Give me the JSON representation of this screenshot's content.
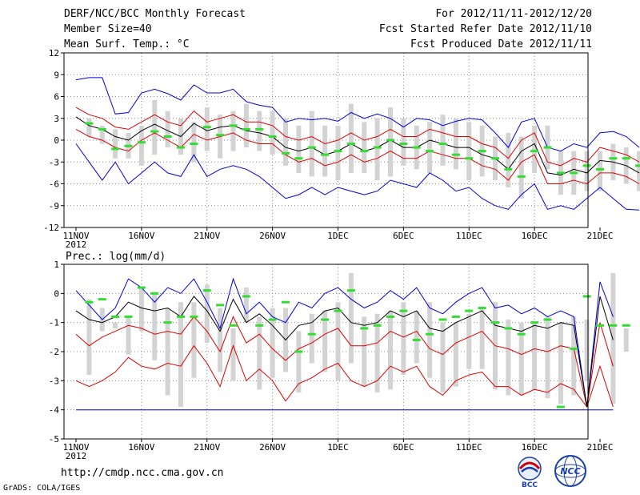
{
  "header": {
    "title": "DERF/NCC/BCC Monthly Forecast",
    "member_size": "Member Size=40",
    "variable1": "Mean Surf. Temp.: °C",
    "period": "For 2012/11/11-2012/12/20",
    "fcst_started": "Fcst Started Refer Date 2012/11/10",
    "fcst_produced": "Fcst Produced Date 2012/11/11"
  },
  "footer": {
    "url": "http://cmdp.ncc.cma.gov.cn",
    "credit": "GrADS: COLA/IGES",
    "logo_bcc": "BCC",
    "logo_ncc": "NCC"
  },
  "colors": {
    "max_min": "#0000dd",
    "std": "#dd0000",
    "mean": "#000000",
    "box": "#d3d3d3",
    "ensemble": "#33dd33"
  },
  "chart_data": [
    {
      "type": "line",
      "id": "temp",
      "title": "Mean Surf. Temp.: °C",
      "x_tick_labels": [
        "11NOV",
        "16NOV",
        "21NOV",
        "26NOV",
        "1DEC",
        "6DEC",
        "11DEC",
        "16DEC",
        "21DEC"
      ],
      "x_year_label": "2012",
      "ylim": [
        -12,
        12
      ],
      "yticks": [
        12,
        9,
        6,
        3,
        0,
        -3,
        -6,
        -9,
        -12
      ],
      "series": [
        {
          "name": "max",
          "values": [
            8.3,
            8.6,
            8.6,
            3.6,
            3.8,
            6.5,
            7.0,
            6.4,
            5.5,
            7.6,
            6.5,
            6.5,
            7.0,
            5.3,
            4.8,
            4.5,
            2.5,
            3.0,
            2.8,
            3.0,
            2.6,
            3.8,
            3.0,
            3.6,
            3.0,
            1.8,
            3.0,
            2.8,
            2.0,
            2.6,
            3.0,
            2.8,
            1.0,
            -1.0,
            2.5,
            3.0,
            -1.0,
            -1.5,
            -0.5,
            -1.0,
            1.0,
            1.2,
            0.5,
            -1.0
          ]
        },
        {
          "name": "std_upper",
          "values": [
            4.5,
            3.5,
            3.0,
            1.8,
            1.5,
            2.5,
            3.5,
            2.5,
            2.0,
            4.0,
            2.5,
            3.0,
            3.5,
            2.5,
            2.5,
            2.0,
            0.5,
            0.0,
            0.5,
            -0.5,
            0.0,
            1.0,
            0.0,
            0.5,
            1.5,
            0.5,
            0.5,
            1.5,
            1.0,
            0.5,
            0.5,
            -0.5,
            -1.0,
            -2.5,
            0.0,
            1.0,
            -3.0,
            -3.5,
            -2.5,
            -3.0,
            -1.0,
            -1.5,
            -2.0,
            -3.0
          ]
        },
        {
          "name": "mean",
          "values": [
            3.2,
            2.0,
            1.5,
            0.5,
            0.0,
            1.3,
            2.2,
            1.3,
            0.5,
            2.3,
            1.3,
            1.8,
            2.0,
            1.3,
            1.0,
            0.5,
            -1.0,
            -1.5,
            -1.0,
            -2.0,
            -1.5,
            -0.5,
            -1.5,
            -1.0,
            0.0,
            -1.0,
            -1.0,
            0.0,
            -0.5,
            -1.0,
            -1.0,
            -2.0,
            -2.5,
            -4.0,
            -1.5,
            -0.5,
            -4.5,
            -4.8,
            -4.0,
            -4.5,
            -2.8,
            -3.0,
            -3.5,
            -4.5
          ]
        },
        {
          "name": "std_lower",
          "values": [
            1.5,
            0.5,
            0.0,
            -1.0,
            -1.5,
            0.0,
            1.0,
            0.0,
            -1.0,
            0.8,
            0.0,
            0.5,
            1.0,
            0.0,
            -0.5,
            -0.5,
            -2.0,
            -3.0,
            -2.5,
            -3.5,
            -3.0,
            -2.0,
            -3.0,
            -2.5,
            -1.5,
            -2.5,
            -2.5,
            -1.5,
            -2.0,
            -2.5,
            -2.5,
            -3.5,
            -4.0,
            -5.5,
            -3.0,
            -2.0,
            -6.0,
            -6.0,
            -5.5,
            -6.0,
            -4.5,
            -4.5,
            -5.0,
            -6.0
          ]
        },
        {
          "name": "min",
          "values": [
            -0.5,
            -3.0,
            -5.5,
            -3.0,
            -6.0,
            -4.5,
            -3.0,
            -4.5,
            -5.0,
            -2.0,
            -5.0,
            -4.0,
            -3.5,
            -4.0,
            -5.0,
            -6.5,
            -8.0,
            -7.5,
            -6.5,
            -7.5,
            -6.5,
            -7.0,
            -7.5,
            -7.0,
            -5.5,
            -6.0,
            -6.5,
            -4.5,
            -5.5,
            -7.0,
            -6.5,
            -8.0,
            -9.0,
            -9.5,
            -7.5,
            -6.0,
            -9.5,
            -9.0,
            -9.5,
            -8.0,
            -6.5,
            -8.0,
            -9.5,
            -9.6
          ]
        },
        {
          "name": "ensemble_mark",
          "values": [
            2.3,
            1.5,
            -1.2,
            -0.8,
            -0.3,
            1.2,
            0.5,
            -1.0,
            -0.5,
            1.8,
            0.7,
            2.0,
            1.5,
            1.5,
            0.5,
            -1.8,
            -2.5,
            -1.0,
            -2.0,
            -1.5,
            -0.5,
            -1.5,
            -1.0,
            0.0,
            -0.5,
            -1.0,
            -1.5,
            -0.5,
            -2.0,
            -2.5,
            -1.5,
            -2.5,
            -4.0,
            -5.0,
            -1.5,
            -1.0,
            -4.5,
            -4.5,
            -3.5,
            -4.0,
            -2.5,
            -2.5,
            -3.5,
            -4.5
          ]
        },
        {
          "name": "box_top",
          "values": [
            3.0,
            2.0,
            1.5,
            1.0,
            2.0,
            5.5,
            4.0,
            3.0,
            2.5,
            4.5,
            3.5,
            4.0,
            5.0,
            4.0,
            4.0,
            3.0,
            2.0,
            4.0,
            2.0,
            2.0,
            5.0,
            2.5,
            3.0,
            4.5,
            3.0,
            2.0,
            2.5,
            3.5,
            3.0,
            2.5,
            2.0,
            0.5,
            1.0,
            0.5,
            2.0,
            2.0,
            -1.5,
            -1.5,
            -1.5,
            -1.5,
            -0.5,
            -1.0,
            -1.5,
            -3.0
          ]
        },
        {
          "name": "box_bottom",
          "values": [
            0.5,
            -0.5,
            -2.5,
            -2.5,
            -3.5,
            -2.0,
            -1.0,
            -2.0,
            -3.0,
            -1.5,
            -2.5,
            -1.5,
            -1.0,
            -1.5,
            -2.0,
            -3.5,
            -4.5,
            -5.0,
            -5.0,
            -5.5,
            -4.5,
            -4.5,
            -5.5,
            -5.0,
            -3.5,
            -4.0,
            -4.5,
            -3.5,
            -4.0,
            -5.5,
            -5.0,
            -5.5,
            -6.5,
            -8.0,
            -4.5,
            -4.0,
            -7.5,
            -7.5,
            -7.0,
            -7.0,
            -5.5,
            -6.0,
            -7.0,
            -8.0
          ]
        }
      ]
    },
    {
      "type": "line",
      "id": "prec",
      "title": "Prec.: log(mm/d)",
      "x_tick_labels": [
        "11NOV",
        "16NOV",
        "21NOV",
        "26NOV",
        "1DEC",
        "6DEC",
        "11DEC",
        "16DEC",
        "21DEC"
      ],
      "x_year_label": "2012",
      "ylim": [
        -5,
        1
      ],
      "yticks": [
        1,
        0,
        -1,
        -2,
        -3,
        -4,
        -5
      ],
      "series": [
        {
          "name": "max",
          "values": [
            0.1,
            -0.4,
            -0.9,
            -0.5,
            0.5,
            0.2,
            -0.3,
            0.2,
            0.0,
            0.5,
            -0.3,
            -1.2,
            0.5,
            -0.7,
            -0.3,
            -0.8,
            -1.0,
            -0.3,
            -0.5,
            0.0,
            0.2,
            -0.2,
            -0.5,
            -0.3,
            0.1,
            -0.2,
            0.2,
            -0.5,
            -0.7,
            -0.3,
            0.0,
            0.2,
            -0.5,
            -0.4,
            -0.7,
            -0.5,
            -0.8,
            -0.6,
            -0.8,
            -3.9,
            0.4,
            -0.8
          ]
        },
        {
          "name": "mean",
          "values": [
            -0.6,
            -0.9,
            -1.0,
            -0.8,
            -0.3,
            -0.5,
            -0.6,
            -0.5,
            -0.8,
            -0.1,
            -0.6,
            -1.3,
            -0.2,
            -1.0,
            -0.7,
            -1.1,
            -1.6,
            -1.1,
            -1.0,
            -0.6,
            -0.5,
            -1.0,
            -1.1,
            -1.0,
            -0.6,
            -0.8,
            -0.6,
            -1.2,
            -1.3,
            -1.0,
            -0.8,
            -0.6,
            -1.1,
            -1.2,
            -1.3,
            -1.1,
            -1.2,
            -1.0,
            -1.1,
            -3.9,
            -0.1,
            -1.6
          ]
        },
        {
          "name": "std_lower",
          "values": [
            -1.4,
            -1.8,
            -1.5,
            -1.3,
            -1.1,
            -1.2,
            -1.4,
            -1.3,
            -1.4,
            -0.8,
            -1.3,
            -2.0,
            -0.8,
            -1.7,
            -1.4,
            -1.9,
            -2.3,
            -1.9,
            -1.7,
            -1.4,
            -1.2,
            -1.8,
            -1.8,
            -1.7,
            -1.3,
            -1.5,
            -1.3,
            -1.9,
            -2.1,
            -1.7,
            -1.5,
            -1.3,
            -1.8,
            -1.9,
            -2.1,
            -1.9,
            -2.0,
            -1.8,
            -1.9,
            -3.9,
            -1.0,
            -2.5
          ]
        },
        {
          "name": "min_red",
          "values": [
            -3.0,
            -3.2,
            -3.0,
            -2.7,
            -2.2,
            -2.5,
            -2.6,
            -2.4,
            -2.5,
            -1.8,
            -2.4,
            -3.2,
            -1.8,
            -3.0,
            -2.6,
            -3.0,
            -3.7,
            -3.1,
            -2.9,
            -2.6,
            -2.4,
            -3.0,
            -3.2,
            -3.0,
            -2.5,
            -2.7,
            -2.5,
            -3.2,
            -3.5,
            -3.0,
            -2.8,
            -2.7,
            -3.2,
            -3.2,
            -3.5,
            -3.3,
            -3.4,
            -3.1,
            -3.3,
            -3.9,
            -2.5,
            -3.9
          ]
        },
        {
          "name": "floor",
          "values": [
            -4,
            -4,
            -4,
            -4,
            -4,
            -4,
            -4,
            -4,
            -4,
            -4,
            -4,
            -4,
            -4,
            -4,
            -4,
            -4,
            -4,
            -4,
            -4,
            -4,
            -4,
            -4,
            -4,
            -4,
            -4,
            -4,
            -4,
            -4,
            -4,
            -4,
            -4,
            -4,
            -4,
            -4,
            -4,
            -4,
            -4,
            -4,
            -4,
            -4,
            -4,
            -4
          ]
        },
        {
          "name": "ensemble_mark",
          "values": [
            -0.3,
            -0.2,
            -0.8,
            -0.8,
            0.2,
            0.0,
            -1.0,
            -0.8,
            -0.8,
            0.1,
            -0.4,
            -1.1,
            -0.1,
            -1.1,
            -0.9,
            -0.3,
            -2.0,
            -1.4,
            -0.9,
            -0.6,
            0.1,
            -1.2,
            -1.1,
            -0.8,
            -0.6,
            -1.6,
            -1.4,
            -0.9,
            -0.8,
            -0.6,
            -0.5,
            -1.0,
            -1.2,
            -1.4,
            -1.0,
            -0.9,
            -3.9,
            -1.9,
            -0.1,
            -1.1,
            -1.1,
            -1.1
          ]
        },
        {
          "name": "box_top",
          "values": [
            -0.2,
            -0.5,
            -1.0,
            -0.8,
            0.2,
            0.0,
            -0.5,
            -0.3,
            -0.3,
            0.3,
            -0.5,
            -1.2,
            0.2,
            -0.8,
            -0.5,
            -0.5,
            -1.3,
            -0.7,
            -0.6,
            -0.3,
            0.7,
            -0.8,
            -0.7,
            -0.6,
            -0.3,
            -0.6,
            -0.3,
            -1.0,
            -1.0,
            -0.7,
            -0.5,
            -0.3,
            -0.9,
            -1.0,
            -1.0,
            -0.8,
            -1.0,
            -0.8,
            -0.9,
            -3.9,
            0.7,
            -1.2
          ]
        },
        {
          "name": "box_bottom",
          "values": [
            -2.8,
            -1.3,
            -1.2,
            -2.1,
            -1.3,
            -2.3,
            -3.5,
            -3.9,
            -2.9,
            -1.7,
            -2.7,
            -3.0,
            -1.0,
            -3.3,
            -2.9,
            -2.7,
            -3.4,
            -2.4,
            -2.7,
            -3.0,
            -2.4,
            -3.2,
            -3.4,
            -3.3,
            -2.8,
            -2.4,
            -2.9,
            -3.4,
            -3.2,
            -2.6,
            -2.6,
            -3.3,
            -3.5,
            -3.5,
            -3.3,
            -3.6,
            -3.8,
            -3.5,
            -3.0,
            -3.9,
            -3.8,
            -2.0
          ]
        }
      ]
    }
  ]
}
